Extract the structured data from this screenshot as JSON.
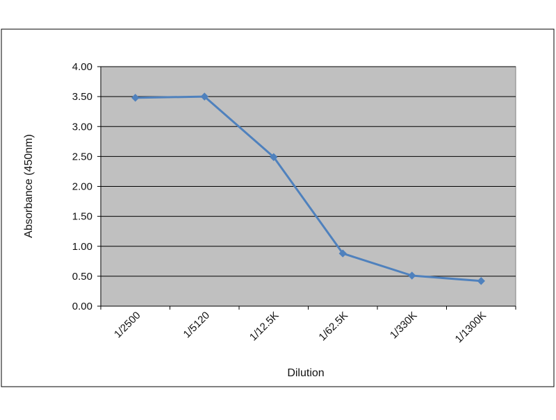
{
  "chart_data": {
    "type": "line",
    "title": "",
    "xlabel": "Dilution",
    "ylabel": "Absorbance (450nm)",
    "categories": [
      "1/2500",
      "1/5120",
      "1/12.5K",
      "1/62.5K",
      "1/330K",
      "1/1300K"
    ],
    "series": [
      {
        "values": [
          3.48,
          3.5,
          2.49,
          0.88,
          0.51,
          0.42
        ]
      }
    ],
    "ylim": [
      0,
      4
    ],
    "y_ticks": [
      "0.00",
      "0.50",
      "1.00",
      "1.50",
      "2.00",
      "2.50",
      "3.00",
      "3.50",
      "4.00"
    ],
    "grid": true,
    "legend": "none",
    "colors": {
      "plot_background": "#c0c0c0",
      "line": "#4f81bd",
      "gridline": "#000000",
      "border": "#000000"
    },
    "marker": "diamond"
  }
}
